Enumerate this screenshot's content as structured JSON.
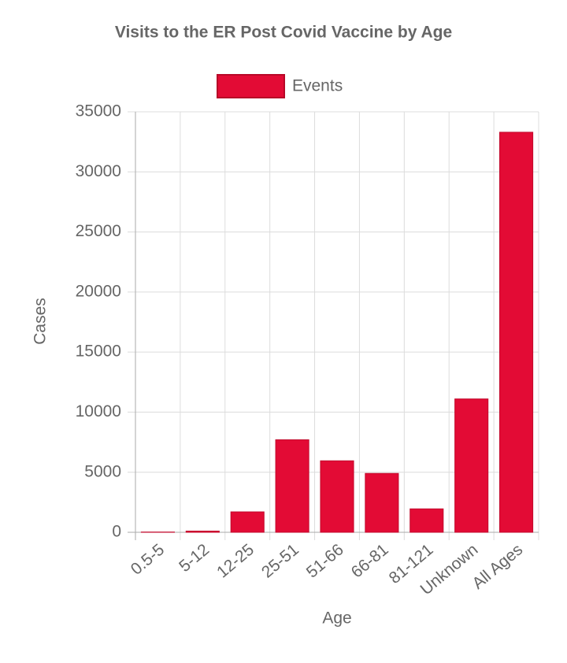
{
  "chart_data": {
    "type": "bar",
    "title": "Visits to the ER Post Covid Vaccine by Age",
    "x_label": "Age",
    "y_label": "Cases",
    "categories": [
      "0.5-5",
      "5-12",
      "12-25",
      "25-51",
      "51-66",
      "66-81",
      "81-121",
      "Unknown",
      "All Ages"
    ],
    "series": [
      {
        "name": "Events",
        "color": "#e30b35",
        "values": [
          20,
          100,
          1700,
          7700,
          5950,
          4900,
          1950,
          11100,
          33300
        ]
      }
    ],
    "ylim": [
      0,
      35000
    ],
    "yticks": [
      0,
      5000,
      10000,
      15000,
      20000,
      25000,
      30000,
      35000
    ],
    "grid": true
  }
}
